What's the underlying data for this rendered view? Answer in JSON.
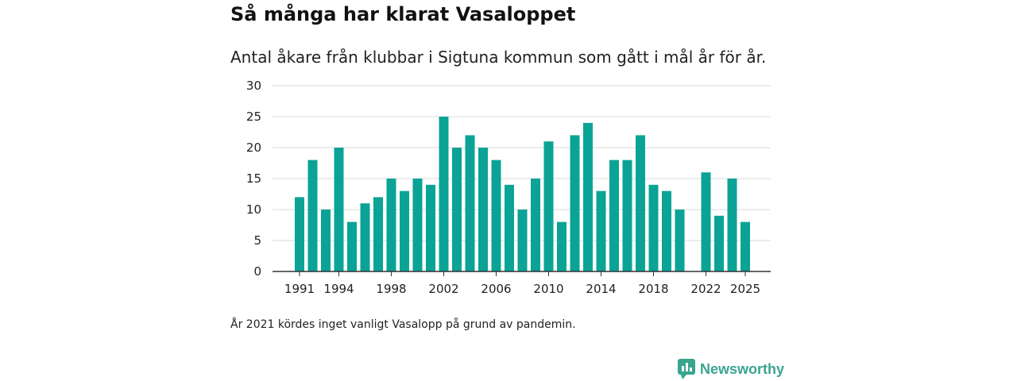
{
  "title": "Så många har klarat Vasaloppet",
  "subtitle": "Antal åkare från klubbar i Sigtuna kommun som gått i mål år för år.",
  "note": "År 2021 kördes inget vanligt Vasalopp på grund av pandemin.",
  "brand": {
    "name": "Newsworthy",
    "icon": "newsworthy-logo-icon",
    "color": "#3aa58f"
  },
  "colors": {
    "bar": "#0aa396",
    "grid": "#d9d9d9",
    "axis": "#333333"
  },
  "chart_data": {
    "type": "bar",
    "title": "Så många har klarat Vasaloppet",
    "xlabel": "",
    "ylabel": "",
    "ylim": [
      0,
      30
    ],
    "yticks": [
      0,
      5,
      10,
      15,
      20,
      25,
      30
    ],
    "xtick_labels": [
      "1991",
      "1994",
      "1998",
      "2002",
      "2006",
      "2010",
      "2014",
      "2018",
      "2022",
      "2025"
    ],
    "categories": [
      1991,
      1992,
      1993,
      1994,
      1995,
      1996,
      1997,
      1998,
      1999,
      2000,
      2001,
      2002,
      2003,
      2004,
      2005,
      2006,
      2007,
      2008,
      2009,
      2010,
      2011,
      2012,
      2013,
      2014,
      2015,
      2016,
      2017,
      2018,
      2019,
      2020,
      2021,
      2022,
      2023,
      2024,
      2025
    ],
    "values": [
      12,
      18,
      10,
      20,
      8,
      11,
      12,
      15,
      13,
      15,
      14,
      25,
      20,
      22,
      20,
      18,
      14,
      10,
      15,
      21,
      8,
      22,
      24,
      13,
      18,
      18,
      22,
      14,
      13,
      10,
      null,
      16,
      9,
      15,
      8
    ]
  }
}
